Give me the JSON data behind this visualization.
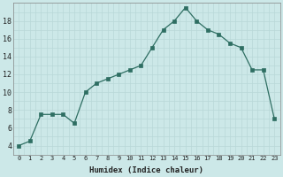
{
  "x": [
    0,
    1,
    2,
    3,
    4,
    5,
    6,
    7,
    8,
    9,
    10,
    11,
    12,
    13,
    14,
    15,
    16,
    17,
    18,
    19,
    20,
    21,
    22,
    23
  ],
  "y": [
    4,
    4.5,
    7.5,
    7.5,
    7.5,
    6.5,
    10,
    11,
    11.5,
    12,
    12.5,
    13,
    15,
    17,
    18,
    19.5,
    18,
    17,
    16.5,
    15.5,
    15,
    12.5,
    12.5,
    7
  ],
  "xlabel": "Humidex (Indice chaleur)",
  "bg_color": "#cce8e8",
  "line_color": "#2e6e62",
  "marker_color": "#2e6e62",
  "grid_color": "#b8d8d8",
  "tick_label_color": "#222222",
  "ylim": [
    3,
    20
  ],
  "xlim": [
    -0.5,
    23.5
  ],
  "yticks": [
    4,
    6,
    8,
    10,
    12,
    14,
    16,
    18
  ],
  "xticks": [
    0,
    1,
    2,
    3,
    4,
    5,
    6,
    7,
    8,
    9,
    10,
    11,
    12,
    13,
    14,
    15,
    16,
    17,
    18,
    19,
    20,
    21,
    22,
    23
  ],
  "xtick_labels": [
    "0",
    "1",
    "2",
    "3",
    "4",
    "5",
    "6",
    "7",
    "8",
    "9",
    "10",
    "11",
    "12",
    "13",
    "14",
    "15",
    "16",
    "17",
    "18",
    "19",
    "20",
    "21",
    "22",
    "23"
  ]
}
